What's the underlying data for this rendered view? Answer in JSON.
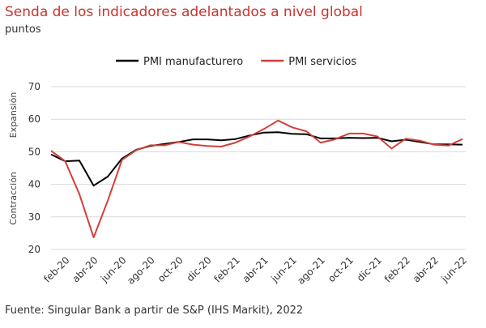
{
  "chart_data": {
    "type": "line",
    "title": "Senda de los indicadores adelantados a nivel global",
    "subtitle": "puntos",
    "annotations": [
      "Expansión",
      "Contracción"
    ],
    "source": "Fuente: Singular Bank a partir de S&P (IHS Markit), 2022",
    "categories": [
      null,
      "feb-20",
      null,
      "abr-20",
      null,
      "jun-20",
      null,
      "ago-20",
      null,
      "oct-20",
      null,
      "dic-20",
      null,
      "feb-21",
      null,
      "abr-21",
      null,
      "jun-21",
      null,
      "ago-21",
      null,
      "oct-21",
      null,
      "dic-21",
      null,
      "feb-22",
      null,
      "abr-22",
      null,
      "jun-22"
    ],
    "series": [
      {
        "name": "PMI manufacturero",
        "color": "#000000",
        "values": [
          49.2,
          47.1,
          47.3,
          39.6,
          42.4,
          47.9,
          50.6,
          51.8,
          52.4,
          53.0,
          53.8,
          53.8,
          53.5,
          53.9,
          55.0,
          55.9,
          56.0,
          55.5,
          55.4,
          54.1,
          54.1,
          54.3,
          54.2,
          54.3,
          53.2,
          53.7,
          53.0,
          52.3,
          52.3,
          52.2
        ]
      },
      {
        "name": "PMI servicios",
        "color": "#d0403a",
        "values": [
          50.3,
          47.1,
          37.0,
          23.7,
          35.0,
          47.5,
          50.5,
          52.0,
          52.0,
          53.0,
          52.2,
          51.8,
          51.6,
          52.8,
          54.7,
          57.0,
          59.6,
          57.5,
          56.3,
          52.8,
          53.8,
          55.6,
          55.6,
          54.7,
          51.0,
          54.0,
          53.4,
          52.2,
          51.9,
          53.9
        ]
      }
    ],
    "ylim": [
      20,
      70
    ],
    "yticks": [
      20,
      30,
      40,
      50,
      60,
      70
    ],
    "grid": true,
    "legend": "top"
  }
}
